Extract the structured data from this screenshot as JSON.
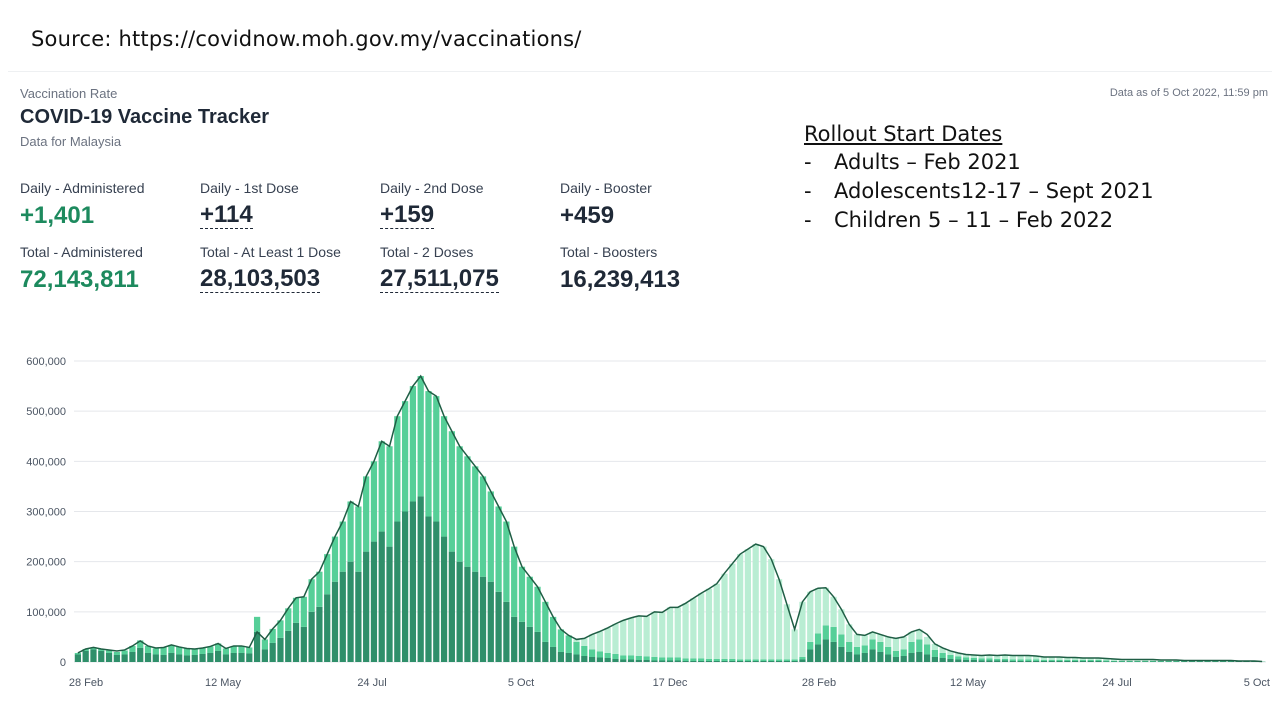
{
  "source_text": "Source: https://covidnow.moh.gov.my/vaccinations/",
  "header": {
    "eyebrow": "Vaccination Rate",
    "title": "COVID-19 Vaccine Tracker",
    "subtitle": "Data for Malaysia",
    "as_of": "Data as of 5 Oct 2022, 11:59 pm"
  },
  "stats": {
    "daily": [
      {
        "label": "Daily - Administered",
        "value": "+1,401"
      },
      {
        "label": "Daily - 1st Dose",
        "value": "+114"
      },
      {
        "label": "Daily - 2nd Dose",
        "value": "+159"
      },
      {
        "label": "Daily - Booster",
        "value": "+459"
      }
    ],
    "total": [
      {
        "label": "Total - Administered",
        "value": "72,143,811"
      },
      {
        "label": "Total - At Least 1 Dose",
        "value": "28,103,503"
      },
      {
        "label": "Total - 2 Doses",
        "value": "27,511,075"
      },
      {
        "label": "Total - Boosters",
        "value": "16,239,413"
      }
    ]
  },
  "rollout": {
    "title": "Rollout Start Dates",
    "items": [
      {
        "dash": "-",
        "text": "Adults – Feb 2021"
      },
      {
        "dash": "-",
        "text": "Adolescents12-17 – Sept 2021"
      },
      {
        "dash": "-",
        "text": "Children 5 – 11 – Feb 2022"
      }
    ]
  },
  "colors": {
    "accent_green": "#1d8a5e",
    "dose1": "#2f8f6a",
    "dose2": "#56cf98",
    "booster": "#b9edd3",
    "line": "#1f5e45",
    "grid": "#e5e7eb"
  },
  "chart_data": {
    "type": "bar",
    "stacked": true,
    "title": "",
    "xlabel": "",
    "ylabel": "",
    "ylim": [
      0,
      600000
    ],
    "yticks": [
      "0",
      "100,000",
      "200,000",
      "300,000",
      "400,000",
      "500,000",
      "600,000"
    ],
    "ytick_values": [
      0,
      100000,
      200000,
      300000,
      400000,
      500000,
      600000
    ],
    "xticks": [
      "28 Feb",
      "12 May",
      "24 Jul",
      "5 Oct",
      "17 Dec",
      "28 Feb",
      "12 May",
      "24 Jul",
      "5 Oct"
    ],
    "grid": true,
    "legend": "none",
    "sample_interval_days": 3,
    "series": [
      {
        "key": "dose1",
        "values": [
          15000,
          22000,
          25000,
          22000,
          18000,
          14000,
          15000,
          20000,
          28000,
          18000,
          15000,
          14000,
          18000,
          15000,
          13000,
          14000,
          16000,
          18000,
          22000,
          15000,
          18000,
          18000,
          17000,
          60000,
          25000,
          38000,
          48000,
          62000,
          78000,
          70000,
          100000,
          110000,
          135000,
          160000,
          180000,
          200000,
          180000,
          220000,
          240000,
          260000,
          230000,
          280000,
          300000,
          320000,
          330000,
          290000,
          280000,
          250000,
          220000,
          200000,
          190000,
          180000,
          170000,
          160000,
          140000,
          120000,
          90000,
          80000,
          70000,
          60000,
          40000,
          30000,
          20000,
          18000,
          15000,
          12000,
          10000,
          9000,
          8000,
          6000,
          5000,
          5000,
          4000,
          4000,
          3000,
          3000,
          3000,
          3000,
          2000,
          2000,
          2000,
          2000,
          2000,
          2000,
          2000,
          2000,
          2000,
          2000,
          2000,
          2000,
          2000,
          2000,
          2000,
          5000,
          25000,
          35000,
          45000,
          40000,
          30000,
          20000,
          15000,
          18000,
          25000,
          20000,
          15000,
          10000,
          12000,
          18000,
          20000,
          15000,
          10000,
          8000,
          6000,
          5000,
          4000,
          4000,
          3000,
          3000,
          3000,
          3000,
          2000,
          2000,
          2000,
          2000,
          2000,
          2000,
          2000,
          2000,
          2000,
          2000,
          2000,
          2000,
          1000,
          1000,
          1000,
          1000,
          1000,
          1000,
          1000,
          1000,
          1000,
          1000,
          1000,
          1000,
          1000,
          1000,
          1000,
          1000,
          1000,
          1000,
          1000,
          1000,
          500
        ]
      },
      {
        "key": "dose2",
        "values": [
          3000,
          4000,
          4000,
          4000,
          5000,
          6000,
          8000,
          12000,
          15000,
          14000,
          12000,
          15000,
          16000,
          15000,
          14000,
          12000,
          12000,
          13000,
          15000,
          12000,
          14000,
          14000,
          12000,
          30000,
          20000,
          28000,
          35000,
          45000,
          50000,
          60000,
          65000,
          70000,
          80000,
          90000,
          100000,
          120000,
          130000,
          150000,
          160000,
          180000,
          200000,
          210000,
          220000,
          230000,
          240000,
          250000,
          250000,
          240000,
          240000,
          230000,
          220000,
          210000,
          200000,
          180000,
          170000,
          160000,
          140000,
          110000,
          100000,
          90000,
          80000,
          60000,
          45000,
          35000,
          25000,
          20000,
          15000,
          12000,
          10000,
          10000,
          8000,
          8000,
          8000,
          7000,
          7000,
          6000,
          6000,
          6000,
          5000,
          5000,
          5000,
          4000,
          4000,
          4000,
          4000,
          3000,
          3000,
          3000,
          3000,
          3000,
          3000,
          3000,
          3000,
          5000,
          15000,
          22000,
          28000,
          30000,
          25000,
          20000,
          15000,
          15000,
          20000,
          20000,
          15000,
          12000,
          13000,
          22000,
          25000,
          20000,
          14000,
          10000,
          8000,
          6000,
          5000,
          4000,
          4000,
          4000,
          3000,
          3000,
          3000,
          3000,
          3000,
          3000,
          2000,
          2000,
          2000,
          2000,
          2000,
          2000,
          2000,
          2000,
          2000,
          1000,
          1000,
          1000,
          1000,
          1000,
          1000,
          1000,
          1000,
          1000,
          1000,
          1000,
          1000,
          1000,
          1000,
          1000,
          1000,
          1000,
          1000,
          1000,
          500
        ]
      },
      {
        "key": "booster",
        "values": [
          0,
          0,
          0,
          0,
          0,
          0,
          0,
          0,
          0,
          0,
          0,
          0,
          0,
          0,
          0,
          0,
          0,
          0,
          0,
          0,
          0,
          0,
          0,
          0,
          0,
          0,
          0,
          0,
          0,
          0,
          0,
          0,
          0,
          0,
          0,
          0,
          0,
          0,
          0,
          0,
          0,
          0,
          0,
          0,
          0,
          0,
          0,
          0,
          0,
          0,
          0,
          0,
          0,
          0,
          0,
          0,
          0,
          0,
          0,
          0,
          0,
          0,
          0,
          0,
          5000,
          15000,
          30000,
          40000,
          50000,
          60000,
          70000,
          75000,
          80000,
          80000,
          90000,
          90000,
          100000,
          100000,
          110000,
          120000,
          130000,
          140000,
          150000,
          170000,
          190000,
          210000,
          220000,
          230000,
          225000,
          200000,
          160000,
          110000,
          60000,
          110000,
          100000,
          90000,
          75000,
          60000,
          50000,
          35000,
          25000,
          20000,
          15000,
          15000,
          20000,
          25000,
          25000,
          20000,
          20000,
          15000,
          12000,
          10000,
          8000,
          7000,
          6000,
          6000,
          6000,
          7000,
          7000,
          8000,
          8000,
          8000,
          8000,
          7000,
          6000,
          6000,
          6000,
          5000,
          5000,
          4000,
          4000,
          4000,
          3000,
          3000,
          3000,
          3000,
          3000,
          3000,
          2000,
          2000,
          2000,
          2000,
          2000,
          2000,
          2000,
          2000,
          1000,
          1000,
          1000,
          1000,
          500
        ]
      }
    ],
    "moving_average_line": {
      "key": "ma7",
      "values": [
        18000,
        26000,
        29000,
        26000,
        24000,
        22000,
        24000,
        32000,
        42000,
        32000,
        28000,
        29000,
        34000,
        30000,
        27000,
        26000,
        28000,
        31000,
        37000,
        27000,
        32000,
        32000,
        29000,
        60000,
        45000,
        66000,
        83000,
        107000,
        128000,
        130000,
        165000,
        180000,
        215000,
        250000,
        280000,
        320000,
        310000,
        370000,
        400000,
        440000,
        430000,
        490000,
        520000,
        550000,
        570000,
        540000,
        530000,
        490000,
        460000,
        430000,
        410000,
        390000,
        370000,
        340000,
        310000,
        280000,
        230000,
        190000,
        170000,
        150000,
        120000,
        90000,
        65000,
        53000,
        45000,
        47000,
        55000,
        61000,
        68000,
        76000,
        83000,
        88000,
        92000,
        91000,
        100000,
        99000,
        109000,
        109000,
        117000,
        127000,
        137000,
        146000,
        156000,
        177000,
        196000,
        215000,
        225000,
        235000,
        230000,
        205000,
        165000,
        115000,
        65000,
        120000,
        140000,
        147000,
        148000,
        130000,
        105000,
        75000,
        55000,
        53000,
        60000,
        55000,
        50000,
        47000,
        50000,
        60000,
        65000,
        55000,
        36000,
        28000,
        22000,
        18000,
        15000,
        14000,
        13000,
        14000,
        13000,
        14000,
        13000,
        13000,
        13000,
        12000,
        10000,
        10000,
        10000,
        9000,
        9000,
        8000,
        8000,
        8000,
        7000,
        6000,
        5000,
        5000,
        5000,
        5000,
        5000,
        4000,
        4000,
        4000,
        3000,
        3000,
        3000,
        3000,
        3000,
        3000,
        3000,
        2000,
        2000,
        2000,
        1000
      ]
    }
  }
}
